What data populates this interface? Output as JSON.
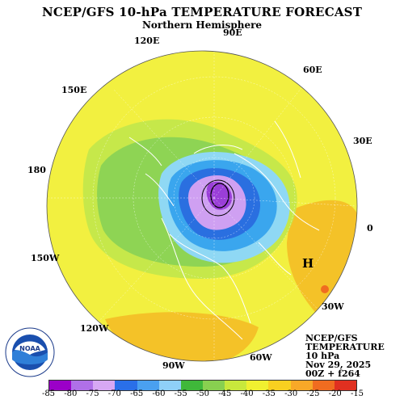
{
  "title": "NCEP/GFS 10-hPa TEMPERATURE FORECAST",
  "subtitle": "Northern Hemisphere",
  "longitude_labels": [
    "90E",
    "120E",
    "60E",
    "150E",
    "30E",
    "180",
    "0",
    "150W",
    "30W",
    "120W",
    "60W",
    "90W"
  ],
  "high_marker": "H",
  "info": {
    "line1": "NCEP/GFS",
    "line2": "TEMPERATURE",
    "line3": "10 hPa",
    "line4": "Nov 29, 2025",
    "line5": "00Z + f264"
  },
  "logo": {
    "text": "NOAA",
    "icon": "noaa-logo-icon"
  },
  "legend": {
    "ticks": [
      "-85",
      "-80",
      "-75",
      "-70",
      "-65",
      "-60",
      "-55",
      "-50",
      "-45",
      "-40",
      "-35",
      "-30",
      "-25",
      "-20",
      "-15"
    ],
    "colors": [
      "#9b00c8",
      "#b070e8",
      "#d7a8f4",
      "#2a6fe8",
      "#4aa0f0",
      "#8fd0f8",
      "#3fb83a",
      "#88d050",
      "#c8e83c",
      "#f0f030",
      "#f8d020",
      "#f8a828",
      "#f06c20",
      "#e03020"
    ]
  },
  "colors": {
    "yellow": "#f2f040",
    "light_green": "#c6e84a",
    "green": "#8ed454",
    "cyan": "#8fd8f4",
    "blue": "#3aa6ee",
    "dark_blue": "#2a6fe0",
    "lilac": "#cfa0f2",
    "purple": "#9a3ed8",
    "orange": "#f4c228",
    "dark_orange": "#f0a030"
  }
}
